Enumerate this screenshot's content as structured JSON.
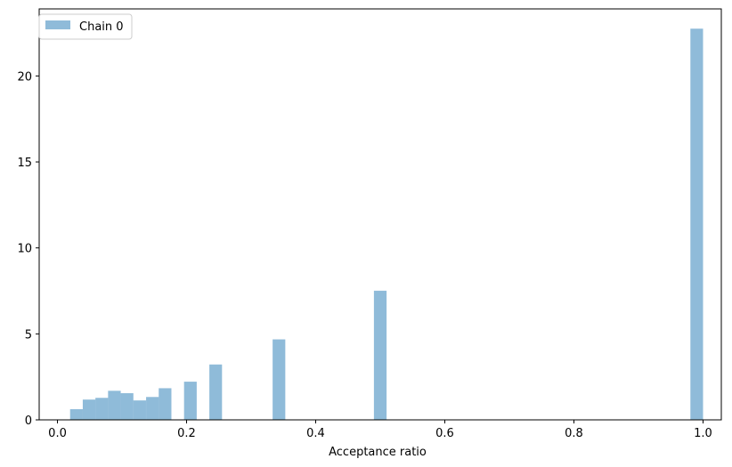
{
  "chart_data": {
    "type": "bar",
    "title": "",
    "xlabel": "Acceptance ratio",
    "ylabel": "",
    "xlim": [
      -0.0283,
      1.0283
    ],
    "ylim": [
      0,
      23.9
    ],
    "xticks": [
      0.0,
      0.2,
      0.4,
      0.6,
      0.8,
      1.0
    ],
    "xtick_labels": [
      "0.0",
      "0.2",
      "0.4",
      "0.6",
      "0.8",
      "1.0"
    ],
    "yticks": [
      0,
      5,
      10,
      15,
      20
    ],
    "ytick_labels": [
      "0",
      "5",
      "10",
      "15",
      "20"
    ],
    "grid": false,
    "legend": {
      "placement": "top-left",
      "entries": [
        "Chain 0"
      ]
    },
    "bar_color": "#1f77b4",
    "bar_opacity": 0.5,
    "bin_width": 0.0196,
    "series": [
      {
        "name": "Chain 0",
        "bars": [
          {
            "x0": 0.0196,
            "value": 0.62
          },
          {
            "x0": 0.0392,
            "value": 1.18
          },
          {
            "x0": 0.0588,
            "value": 1.28
          },
          {
            "x0": 0.0784,
            "value": 1.69
          },
          {
            "x0": 0.098,
            "value": 1.55
          },
          {
            "x0": 0.1176,
            "value": 1.13
          },
          {
            "x0": 0.1373,
            "value": 1.33
          },
          {
            "x0": 0.1569,
            "value": 1.84
          },
          {
            "x0": 0.1961,
            "value": 2.22
          },
          {
            "x0": 0.2353,
            "value": 3.22
          },
          {
            "x0": 0.3333,
            "value": 4.68
          },
          {
            "x0": 0.4902,
            "value": 7.51
          },
          {
            "x0": 0.9804,
            "value": 22.75
          }
        ]
      }
    ]
  }
}
